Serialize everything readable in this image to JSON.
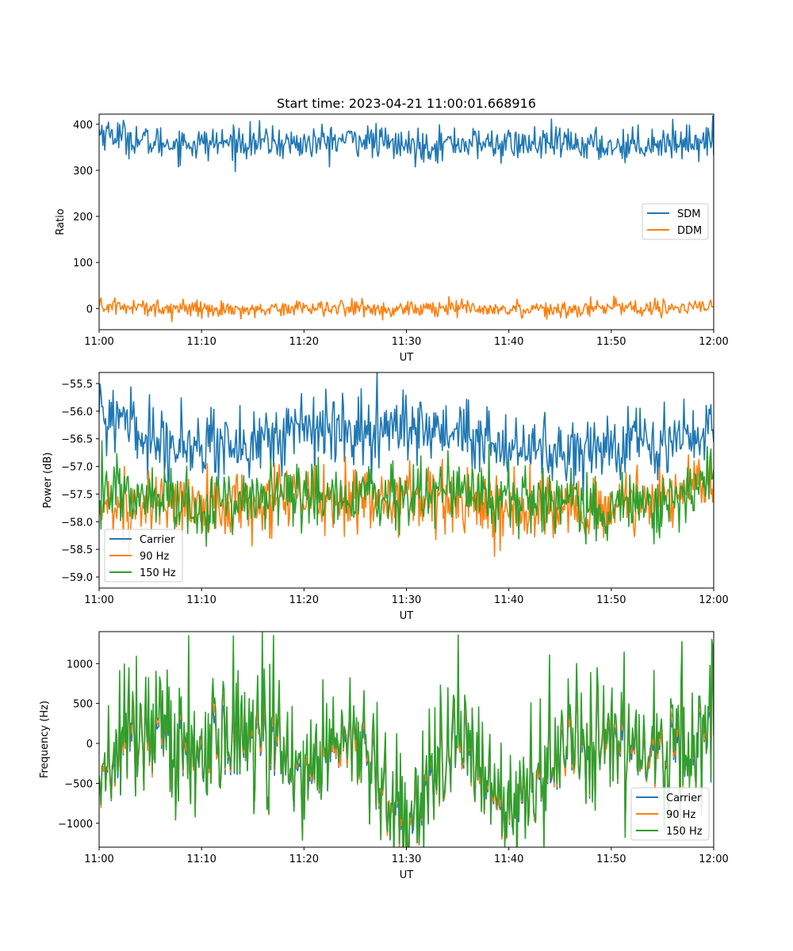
{
  "chart_data": [
    {
      "type": "line",
      "title": "Start time: 2023-04-21 11:00:01.668916",
      "xlabel": "UT",
      "ylabel": "Ratio",
      "xlim": [
        "11:00",
        "12:00"
      ],
      "ylim": [
        -46,
        422
      ],
      "x_ticks": [
        "11:00",
        "11:10",
        "11:20",
        "11:30",
        "11:40",
        "11:50",
        "12:00"
      ],
      "y_ticks": [
        0,
        100,
        200,
        300,
        400
      ],
      "y_tick_labels": [
        "0",
        "100",
        "200",
        "300",
        "400"
      ],
      "grid": false,
      "legend": "center-right",
      "x": [
        "11:00",
        "11:05",
        "11:10",
        "11:15",
        "11:20",
        "11:25",
        "11:30",
        "11:35",
        "11:40",
        "11:45",
        "11:50",
        "11:55",
        "12:00"
      ],
      "series": [
        {
          "name": "SDM",
          "color": "#1f77b4",
          "values": [
            385,
            360,
            358,
            362,
            357,
            368,
            352,
            360,
            356,
            358,
            353,
            361,
            364
          ]
        },
        {
          "name": "DDM",
          "color": "#ff7f0e",
          "values": [
            5,
            2,
            0,
            -2,
            3,
            1,
            -3,
            2,
            0,
            -1,
            3,
            0,
            2
          ]
        }
      ]
    },
    {
      "type": "line",
      "title": "",
      "xlabel": "UT",
      "ylabel": "Power (dB)",
      "xlim": [
        "11:00",
        "12:00"
      ],
      "ylim": [
        -59.2,
        -55.3
      ],
      "x_ticks": [
        "11:00",
        "11:10",
        "11:20",
        "11:30",
        "11:40",
        "11:50",
        "12:00"
      ],
      "y_ticks": [
        -59.0,
        -58.5,
        -58.0,
        -57.5,
        -57.0,
        -56.5,
        -56.0,
        -55.5
      ],
      "y_tick_labels": [
        "−59.0",
        "−58.5",
        "−58.0",
        "−57.5",
        "−57.0",
        "−56.5",
        "−56.0",
        "−55.5"
      ],
      "grid": false,
      "legend": "lower-left",
      "x": [
        "11:00",
        "11:05",
        "11:10",
        "11:15",
        "11:20",
        "11:25",
        "11:30",
        "11:35",
        "11:40",
        "11:45",
        "11:50",
        "11:55",
        "12:00"
      ],
      "series": [
        {
          "name": "Carrier",
          "color": "#1f77b4",
          "values": [
            -56.0,
            -56.5,
            -56.6,
            -56.6,
            -56.3,
            -56.4,
            -56.3,
            -56.4,
            -56.7,
            -56.7,
            -56.6,
            -56.5,
            -56.3
          ]
        },
        {
          "name": "90 Hz",
          "color": "#ff7f0e",
          "values": [
            -57.8,
            -57.6,
            -57.8,
            -57.7,
            -57.6,
            -57.6,
            -57.6,
            -57.6,
            -57.8,
            -57.7,
            -57.8,
            -57.6,
            -57.3
          ]
        },
        {
          "name": "150 Hz",
          "color": "#2ca02c",
          "values": [
            -57.5,
            -57.5,
            -57.7,
            -57.6,
            -57.4,
            -57.6,
            -57.5,
            -57.4,
            -57.6,
            -57.6,
            -57.8,
            -57.7,
            -57.1
          ]
        }
      ]
    },
    {
      "type": "line",
      "title": "",
      "xlabel": "UT",
      "ylabel": "Frequency (Hz)",
      "xlim": [
        "11:00",
        "12:00"
      ],
      "ylim": [
        -1300,
        1400
      ],
      "x_ticks": [
        "11:00",
        "11:10",
        "11:20",
        "11:30",
        "11:40",
        "11:50",
        "12:00"
      ],
      "y_ticks": [
        -1000,
        -500,
        0,
        500,
        1000
      ],
      "y_tick_labels": [
        "−1000",
        "−500",
        "0",
        "500",
        "1000"
      ],
      "grid": false,
      "legend": "lower-right",
      "x": [
        "11:00",
        "11:05",
        "11:10",
        "11:15",
        "11:20",
        "11:25",
        "11:30",
        "11:35",
        "11:40",
        "11:45",
        "11:50",
        "11:55",
        "12:00"
      ],
      "series": [
        {
          "name": "Carrier",
          "color": "#1f77b4",
          "values": [
            -300,
            100,
            -200,
            50,
            -400,
            100,
            -1100,
            50,
            -900,
            -100,
            0,
            -200,
            100
          ]
        },
        {
          "name": "90 Hz",
          "color": "#ff7f0e",
          "values": [
            -250,
            140,
            -160,
            90,
            -360,
            140,
            -1050,
            90,
            -860,
            -60,
            40,
            -160,
            140
          ]
        },
        {
          "name": "150 Hz",
          "color": "#2ca02c",
          "values": [
            -200,
            180,
            -120,
            130,
            -320,
            180,
            -1000,
            130,
            -820,
            -20,
            80,
            -120,
            180
          ]
        }
      ]
    }
  ]
}
